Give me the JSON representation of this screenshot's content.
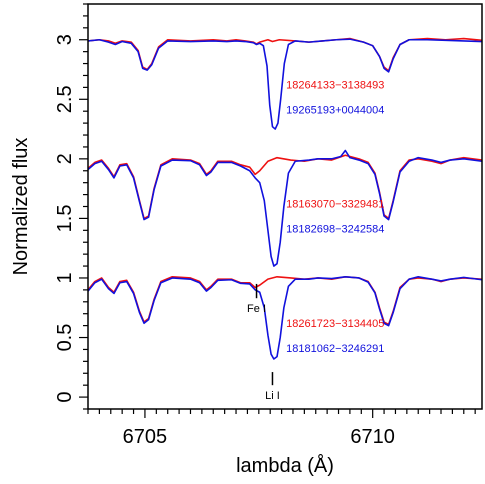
{
  "chart_data": {
    "type": "line",
    "xlabel": "lambda (Å)",
    "ylabel": "Normalized flux",
    "xlim": [
      6703.75,
      6712.4
    ],
    "ylim": [
      -0.1,
      3.3
    ],
    "x_ticks": [
      6705,
      6710
    ],
    "x_tick_labels": [
      "6705",
      "6710"
    ],
    "x_minor_step": 0.25,
    "y_ticks": [
      0,
      0.5,
      1,
      1.5,
      2,
      2.5,
      3
    ],
    "y_tick_labels": [
      "0",
      "0.5",
      "1",
      "1.5",
      "2",
      "2.5",
      "3"
    ],
    "y_minor_step": 0.1,
    "grid": false,
    "legend": "none",
    "colors": {
      "red": "#ee1111",
      "blue": "#1111dd"
    },
    "line_marks": [
      {
        "label": "Fe I",
        "x": 6707.45,
        "y_top": 0.95,
        "y_bottom": 0.83
      },
      {
        "label": "Li I",
        "x": 6707.8,
        "y_top": 0.21,
        "y_bottom": 0.1
      }
    ],
    "series": [
      {
        "star": "18264133−3138493",
        "color": "red",
        "offset": 2,
        "points": [
          [
            6703.75,
            0.99
          ],
          [
            6704.0,
            1.0
          ],
          [
            6704.2,
            0.99
          ],
          [
            6704.35,
            0.97
          ],
          [
            6704.5,
            0.99
          ],
          [
            6704.7,
            0.98
          ],
          [
            6704.85,
            0.91
          ],
          [
            6704.95,
            0.77
          ],
          [
            6705.05,
            0.75
          ],
          [
            6705.15,
            0.8
          ],
          [
            6705.3,
            0.94
          ],
          [
            6705.5,
            1.0
          ],
          [
            6706.0,
            0.99
          ],
          [
            6706.5,
            1.0
          ],
          [
            6706.8,
            0.99
          ],
          [
            6707.0,
            1.0
          ],
          [
            6707.2,
            0.99
          ],
          [
            6707.38,
            0.98
          ],
          [
            6707.45,
            0.965
          ],
          [
            6707.52,
            0.98
          ],
          [
            6707.7,
            1.0
          ],
          [
            6707.8,
            0.985
          ],
          [
            6707.95,
            1.0
          ],
          [
            6708.3,
            0.99
          ],
          [
            6708.6,
            0.98
          ],
          [
            6708.9,
            0.99
          ],
          [
            6709.2,
            1.0
          ],
          [
            6709.5,
            1.01
          ],
          [
            6709.8,
            0.98
          ],
          [
            6710.0,
            0.95
          ],
          [
            6710.15,
            0.86
          ],
          [
            6710.25,
            0.77
          ],
          [
            6710.35,
            0.74
          ],
          [
            6710.45,
            0.85
          ],
          [
            6710.6,
            0.96
          ],
          [
            6710.8,
            1.0
          ],
          [
            6711.2,
            1.01
          ],
          [
            6711.6,
            1.0
          ],
          [
            6712.0,
            1.01
          ],
          [
            6712.4,
            0.995
          ]
        ]
      },
      {
        "star": "19265193+0044004",
        "color": "blue",
        "offset": 2,
        "points": [
          [
            6703.75,
            0.99
          ],
          [
            6704.0,
            1.0
          ],
          [
            6704.2,
            0.98
          ],
          [
            6704.35,
            0.96
          ],
          [
            6704.5,
            0.985
          ],
          [
            6704.7,
            0.97
          ],
          [
            6704.85,
            0.9
          ],
          [
            6704.95,
            0.76
          ],
          [
            6705.05,
            0.745
          ],
          [
            6705.15,
            0.79
          ],
          [
            6705.3,
            0.93
          ],
          [
            6705.5,
            0.99
          ],
          [
            6706.0,
            0.985
          ],
          [
            6706.5,
            0.99
          ],
          [
            6706.8,
            0.985
          ],
          [
            6707.0,
            0.99
          ],
          [
            6707.2,
            0.985
          ],
          [
            6707.38,
            0.975
          ],
          [
            6707.45,
            0.96
          ],
          [
            6707.52,
            0.97
          ],
          [
            6707.6,
            0.95
          ],
          [
            6707.68,
            0.78
          ],
          [
            6707.74,
            0.45
          ],
          [
            6707.8,
            0.27
          ],
          [
            6707.86,
            0.25
          ],
          [
            6707.92,
            0.3
          ],
          [
            6707.98,
            0.5
          ],
          [
            6708.06,
            0.8
          ],
          [
            6708.15,
            0.96
          ],
          [
            6708.3,
            0.99
          ],
          [
            6708.6,
            0.98
          ],
          [
            6708.9,
            0.99
          ],
          [
            6709.2,
            1.0
          ],
          [
            6709.5,
            1.005
          ],
          [
            6709.8,
            0.98
          ],
          [
            6710.0,
            0.95
          ],
          [
            6710.15,
            0.86
          ],
          [
            6710.25,
            0.76
          ],
          [
            6710.35,
            0.73
          ],
          [
            6710.45,
            0.84
          ],
          [
            6710.6,
            0.96
          ],
          [
            6710.8,
            1.0
          ],
          [
            6711.2,
            1.0
          ],
          [
            6711.6,
            0.995
          ],
          [
            6712.0,
            0.99
          ],
          [
            6712.4,
            0.985
          ]
        ]
      },
      {
        "star": "18163070−3329481",
        "color": "red",
        "offset": 1,
        "points": [
          [
            6703.75,
            0.92
          ],
          [
            6703.9,
            0.97
          ],
          [
            6704.05,
            0.99
          ],
          [
            6704.2,
            0.92
          ],
          [
            6704.32,
            0.85
          ],
          [
            6704.45,
            0.95
          ],
          [
            6704.6,
            0.96
          ],
          [
            6704.75,
            0.85
          ],
          [
            6704.88,
            0.65
          ],
          [
            6704.98,
            0.5
          ],
          [
            6705.08,
            0.52
          ],
          [
            6705.2,
            0.75
          ],
          [
            6705.35,
            0.95
          ],
          [
            6705.6,
            1.0
          ],
          [
            6706.0,
            0.99
          ],
          [
            6706.2,
            0.96
          ],
          [
            6706.35,
            0.87
          ],
          [
            6706.45,
            0.9
          ],
          [
            6706.6,
            0.98
          ],
          [
            6706.9,
            0.98
          ],
          [
            6707.1,
            0.95
          ],
          [
            6707.3,
            0.93
          ],
          [
            6707.42,
            0.87
          ],
          [
            6707.52,
            0.9
          ],
          [
            6707.7,
            0.98
          ],
          [
            6707.9,
            1.01
          ],
          [
            6708.2,
            0.99
          ],
          [
            6708.5,
            0.98
          ],
          [
            6708.8,
            1.0
          ],
          [
            6709.1,
            0.99
          ],
          [
            6709.4,
            1.03
          ],
          [
            6709.7,
            1.0
          ],
          [
            6709.9,
            0.97
          ],
          [
            6710.05,
            0.88
          ],
          [
            6710.15,
            0.72
          ],
          [
            6710.25,
            0.53
          ],
          [
            6710.35,
            0.5
          ],
          [
            6710.45,
            0.65
          ],
          [
            6710.6,
            0.9
          ],
          [
            6710.8,
            0.99
          ],
          [
            6711.0,
            1.0
          ],
          [
            6711.3,
            0.98
          ],
          [
            6711.5,
            0.96
          ],
          [
            6711.7,
            0.99
          ],
          [
            6712.0,
            1.01
          ],
          [
            6712.4,
            0.99
          ]
        ]
      },
      {
        "star": "18182698−3242584",
        "color": "blue",
        "offset": 1,
        "points": [
          [
            6703.75,
            0.91
          ],
          [
            6703.9,
            0.96
          ],
          [
            6704.05,
            0.98
          ],
          [
            6704.2,
            0.91
          ],
          [
            6704.32,
            0.84
          ],
          [
            6704.45,
            0.94
          ],
          [
            6704.6,
            0.95
          ],
          [
            6704.75,
            0.84
          ],
          [
            6704.88,
            0.64
          ],
          [
            6704.98,
            0.49
          ],
          [
            6705.08,
            0.51
          ],
          [
            6705.2,
            0.74
          ],
          [
            6705.35,
            0.94
          ],
          [
            6705.6,
            0.99
          ],
          [
            6706.0,
            0.985
          ],
          [
            6706.2,
            0.95
          ],
          [
            6706.35,
            0.86
          ],
          [
            6706.45,
            0.89
          ],
          [
            6706.6,
            0.97
          ],
          [
            6706.9,
            0.97
          ],
          [
            6707.1,
            0.94
          ],
          [
            6707.3,
            0.9
          ],
          [
            6707.42,
            0.84
          ],
          [
            6707.52,
            0.8
          ],
          [
            6707.62,
            0.65
          ],
          [
            6707.7,
            0.4
          ],
          [
            6707.77,
            0.18
          ],
          [
            6707.83,
            0.1
          ],
          [
            6707.9,
            0.12
          ],
          [
            6707.97,
            0.3
          ],
          [
            6708.05,
            0.6
          ],
          [
            6708.15,
            0.88
          ],
          [
            6708.3,
            0.98
          ],
          [
            6708.6,
            0.99
          ],
          [
            6708.8,
            1.0
          ],
          [
            6709.1,
            1.0
          ],
          [
            6709.3,
            1.02
          ],
          [
            6709.4,
            1.07
          ],
          [
            6709.5,
            1.01
          ],
          [
            6709.7,
            0.99
          ],
          [
            6709.9,
            0.96
          ],
          [
            6710.05,
            0.87
          ],
          [
            6710.15,
            0.71
          ],
          [
            6710.25,
            0.52
          ],
          [
            6710.35,
            0.49
          ],
          [
            6710.45,
            0.64
          ],
          [
            6710.6,
            0.89
          ],
          [
            6710.8,
            0.98
          ],
          [
            6711.0,
            1.01
          ],
          [
            6711.3,
            0.99
          ],
          [
            6711.5,
            0.97
          ],
          [
            6711.7,
            0.99
          ],
          [
            6712.0,
            1.0
          ],
          [
            6712.4,
            0.98
          ]
        ]
      },
      {
        "star": "18261723−3134405",
        "color": "red",
        "offset": 0,
        "points": [
          [
            6703.75,
            0.9
          ],
          [
            6703.9,
            0.97
          ],
          [
            6704.05,
            1.0
          ],
          [
            6704.2,
            0.92
          ],
          [
            6704.32,
            0.88
          ],
          [
            6704.45,
            0.97
          ],
          [
            6704.6,
            0.98
          ],
          [
            6704.75,
            0.88
          ],
          [
            6704.88,
            0.72
          ],
          [
            6704.98,
            0.63
          ],
          [
            6705.08,
            0.66
          ],
          [
            6705.2,
            0.82
          ],
          [
            6705.35,
            0.97
          ],
          [
            6705.6,
            1.01
          ],
          [
            6706.0,
            1.0
          ],
          [
            6706.2,
            0.97
          ],
          [
            6706.35,
            0.9
          ],
          [
            6706.45,
            0.93
          ],
          [
            6706.6,
            0.99
          ],
          [
            6706.9,
            0.99
          ],
          [
            6707.1,
            0.96
          ],
          [
            6707.3,
            0.96
          ],
          [
            6707.42,
            0.92
          ],
          [
            6707.52,
            0.94
          ],
          [
            6707.7,
            0.99
          ],
          [
            6707.9,
            1.01
          ],
          [
            6708.2,
            1.0
          ],
          [
            6708.5,
            0.99
          ],
          [
            6708.8,
            1.0
          ],
          [
            6709.1,
            0.99
          ],
          [
            6709.4,
            1.01
          ],
          [
            6709.7,
            1.0
          ],
          [
            6709.9,
            0.97
          ],
          [
            6710.05,
            0.88
          ],
          [
            6710.15,
            0.75
          ],
          [
            6710.25,
            0.63
          ],
          [
            6710.35,
            0.61
          ],
          [
            6710.45,
            0.72
          ],
          [
            6710.6,
            0.92
          ],
          [
            6710.8,
            0.99
          ],
          [
            6711.0,
            1.0
          ],
          [
            6711.3,
            0.99
          ],
          [
            6711.5,
            0.97
          ],
          [
            6711.7,
            0.99
          ],
          [
            6712.0,
            1.0
          ],
          [
            6712.4,
            0.99
          ]
        ]
      },
      {
        "star": "18181062−3246291",
        "color": "blue",
        "offset": 0,
        "points": [
          [
            6703.75,
            0.89
          ],
          [
            6703.9,
            0.96
          ],
          [
            6704.05,
            0.99
          ],
          [
            6704.2,
            0.91
          ],
          [
            6704.32,
            0.87
          ],
          [
            6704.45,
            0.96
          ],
          [
            6704.6,
            0.97
          ],
          [
            6704.75,
            0.87
          ],
          [
            6704.88,
            0.71
          ],
          [
            6704.98,
            0.62
          ],
          [
            6705.08,
            0.65
          ],
          [
            6705.2,
            0.81
          ],
          [
            6705.35,
            0.96
          ],
          [
            6705.6,
            1.0
          ],
          [
            6706.0,
            0.99
          ],
          [
            6706.2,
            0.96
          ],
          [
            6706.35,
            0.89
          ],
          [
            6706.45,
            0.92
          ],
          [
            6706.6,
            0.98
          ],
          [
            6706.9,
            0.985
          ],
          [
            6707.1,
            0.955
          ],
          [
            6707.3,
            0.95
          ],
          [
            6707.42,
            0.9
          ],
          [
            6707.52,
            0.88
          ],
          [
            6707.62,
            0.75
          ],
          [
            6707.7,
            0.52
          ],
          [
            6707.77,
            0.36
          ],
          [
            6707.83,
            0.32
          ],
          [
            6707.9,
            0.34
          ],
          [
            6707.97,
            0.5
          ],
          [
            6708.05,
            0.75
          ],
          [
            6708.15,
            0.93
          ],
          [
            6708.3,
            0.99
          ],
          [
            6708.6,
            0.99
          ],
          [
            6708.8,
            1.0
          ],
          [
            6709.1,
            0.995
          ],
          [
            6709.4,
            1.01
          ],
          [
            6709.7,
            1.0
          ],
          [
            6709.9,
            0.965
          ],
          [
            6710.05,
            0.875
          ],
          [
            6710.15,
            0.74
          ],
          [
            6710.25,
            0.62
          ],
          [
            6710.35,
            0.6
          ],
          [
            6710.45,
            0.71
          ],
          [
            6710.6,
            0.91
          ],
          [
            6710.8,
            0.99
          ],
          [
            6711.0,
            1.01
          ],
          [
            6711.3,
            0.99
          ],
          [
            6711.5,
            0.975
          ],
          [
            6711.7,
            0.99
          ],
          [
            6712.0,
            1.005
          ],
          [
            6712.4,
            0.985
          ]
        ]
      }
    ]
  }
}
